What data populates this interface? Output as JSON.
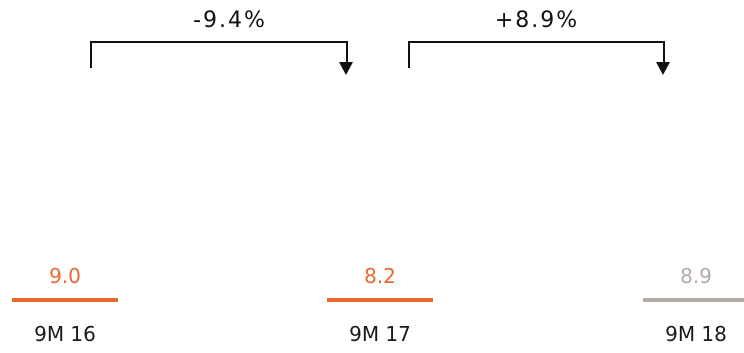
{
  "chart_data": {
    "type": "bar",
    "categories": [
      "9M 16",
      "9M 17",
      "9M 18"
    ],
    "values": [
      9.0,
      8.2,
      8.9
    ],
    "value_labels": [
      "9.0",
      "8.2",
      "8.9"
    ],
    "changes": [
      {
        "from": "9M 16",
        "to": "9M 17",
        "label": "-9.4%"
      },
      {
        "from": "9M 17",
        "to": "9M 18",
        "label": "+8.9%"
      }
    ],
    "colors": [
      "#e8692f",
      "#e8692f",
      "#b5aaa6"
    ],
    "title": "",
    "xlabel": "",
    "ylabel": "",
    "grid": false,
    "legend": "none"
  }
}
